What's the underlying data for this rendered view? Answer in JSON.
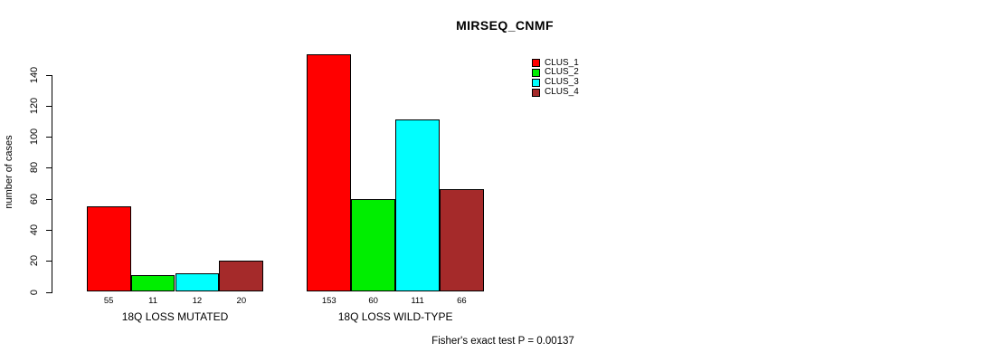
{
  "chart_data": {
    "type": "bar",
    "title": "MIRSEQ_CNMF",
    "ylabel": "number of cases",
    "ylim": [
      0,
      140
    ],
    "yticks": [
      0,
      20,
      40,
      60,
      80,
      100,
      120,
      140
    ],
    "grid": false,
    "legend_position": "top-right",
    "series": [
      {
        "name": "CLUS_1",
        "color": "#ff0000"
      },
      {
        "name": "CLUS_2",
        "color": "#00ee00"
      },
      {
        "name": "CLUS_3",
        "color": "#00ffff"
      },
      {
        "name": "CLUS_4",
        "color": "#a52a2a"
      }
    ],
    "groups": [
      {
        "label": "18Q LOSS MUTATED",
        "values": [
          55,
          11,
          12,
          20
        ]
      },
      {
        "label": "18Q LOSS WILD-TYPE",
        "values": [
          153,
          60,
          111,
          66
        ]
      }
    ],
    "bar_value_labels_shown": true,
    "annotation": "Fisher's exact test P = 0.00137"
  }
}
